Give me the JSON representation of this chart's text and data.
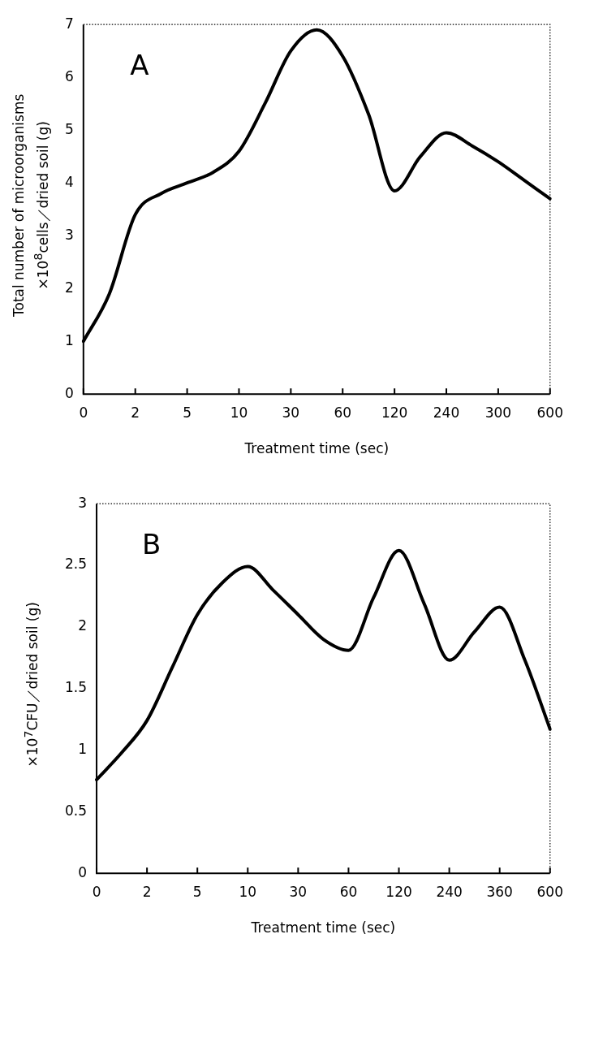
{
  "chart_data": [
    {
      "type": "line",
      "title": "A",
      "xlabel": "Treatment time (sec)",
      "ylabel": "Total number of microorganisms\n×10$^{8}$cells／dried soil (g)",
      "categories": [
        "0",
        null,
        "2",
        null,
        "5",
        null,
        "10",
        null,
        "30",
        null,
        "60",
        null,
        "120",
        null,
        "240",
        null,
        "300",
        null,
        "600"
      ],
      "series": [
        {
          "color": "#000000",
          "values": [
            1.0,
            1.9,
            3.4,
            3.8,
            4.0,
            4.2,
            4.6,
            5.5,
            6.5,
            6.9,
            6.4,
            5.3,
            3.85,
            4.5,
            4.95,
            4.7,
            4.4,
            4.05,
            3.7
          ]
        }
      ],
      "ylim": [
        0,
        7
      ],
      "yticks": [
        0,
        1,
        2,
        3,
        4,
        5,
        6,
        7
      ],
      "grid": false,
      "legend": false,
      "marker": "none",
      "line_style": "solid"
    },
    {
      "type": "line",
      "title": "B",
      "xlabel": "Treatment time (sec)",
      "ylabel": "×10$^{7}$CFU／dried soil (g)",
      "categories": [
        "0",
        null,
        "2",
        null,
        "5",
        null,
        "10",
        null,
        "30",
        null,
        "60",
        null,
        "120",
        null,
        "240",
        null,
        "360",
        null,
        "600"
      ],
      "series": [
        {
          "color": "#000000",
          "values": [
            0.76,
            0.98,
            1.24,
            1.67,
            2.1,
            2.36,
            2.49,
            2.3,
            2.1,
            1.9,
            1.81,
            2.24,
            2.62,
            2.19,
            1.73,
            1.96,
            2.16,
            1.73,
            1.17
          ]
        }
      ],
      "ylim": [
        0,
        3
      ],
      "yticks": [
        0,
        0.5,
        1,
        1.5,
        2,
        2.5,
        3
      ],
      "grid": false,
      "legend": false,
      "marker": "none",
      "line_style": "solid"
    }
  ]
}
